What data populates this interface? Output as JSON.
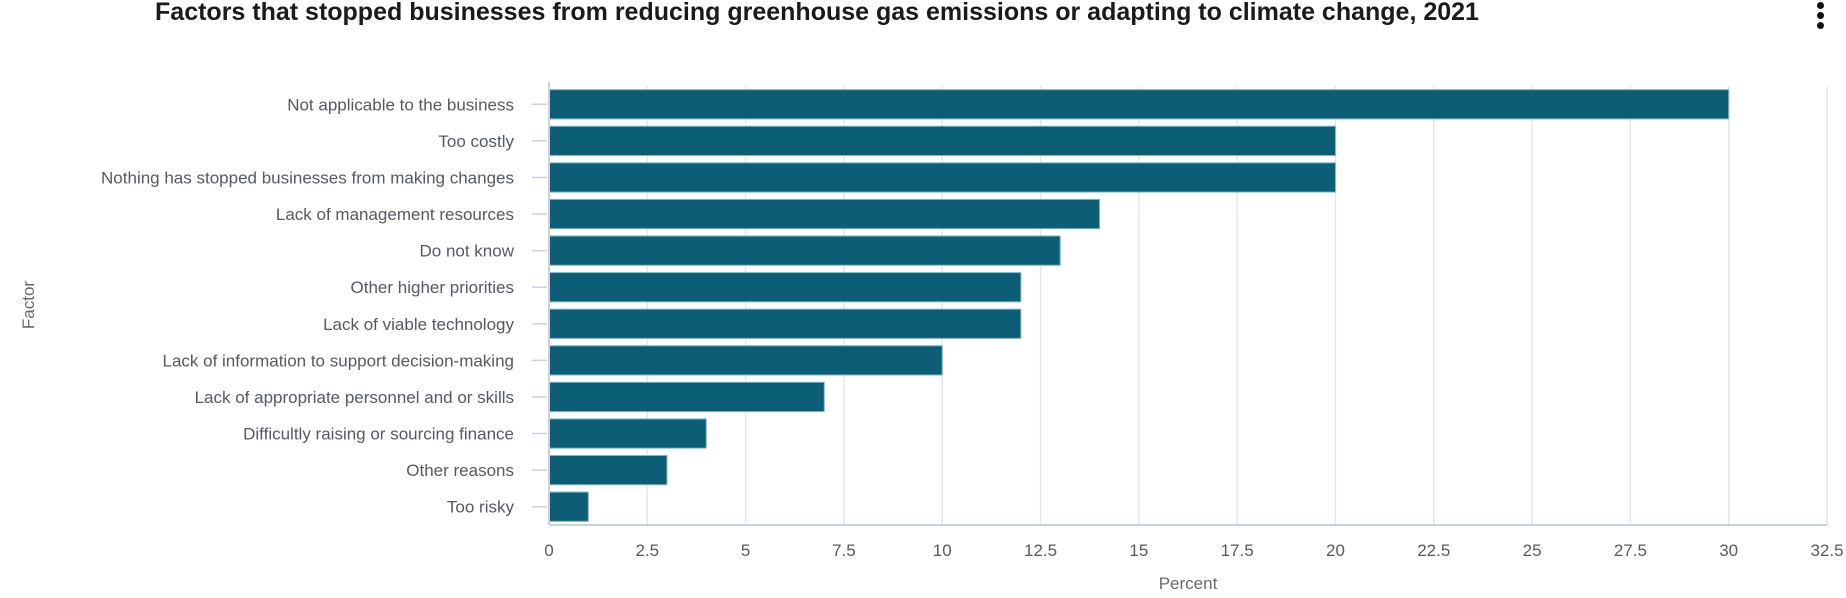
{
  "header": {
    "title": "Factors that stopped businesses from reducing greenhouse gas emissions or adapting to climate change, 2021",
    "menu_icon": "vertical-ellipsis-icon"
  },
  "colors": {
    "bar": "#0b5e75",
    "bar_stroke": "#7fb8cb",
    "grid": "#e3e6ea",
    "axis": "#c9d3e0"
  },
  "chart_data": {
    "type": "bar",
    "orientation": "horizontal",
    "title": "Factors that stopped businesses from reducing greenhouse gas emissions or adapting to climate change, 2021",
    "xlabel": "Percent",
    "ylabel": "Factor",
    "xlim": [
      0,
      32.5
    ],
    "xticks": [
      "0",
      "2.5",
      "5",
      "7.5",
      "10",
      "12.5",
      "15",
      "17.5",
      "20",
      "22.5",
      "25",
      "27.5",
      "30",
      "32.5"
    ],
    "grid": true,
    "legend": "none",
    "categories": [
      "Not applicable to the business",
      "Too costly",
      "Nothing has stopped businesses from making changes",
      "Lack of management resources",
      "Do not know",
      "Other higher priorities",
      "Lack of viable technology",
      "Lack of information to support decision-making",
      "Lack of appropriate personnel and or skills",
      "Difficultly raising or sourcing finance",
      "Other reasons",
      "Too risky"
    ],
    "values": [
      30,
      20,
      20,
      14,
      13,
      12,
      12,
      10,
      7,
      4,
      3,
      1
    ]
  }
}
